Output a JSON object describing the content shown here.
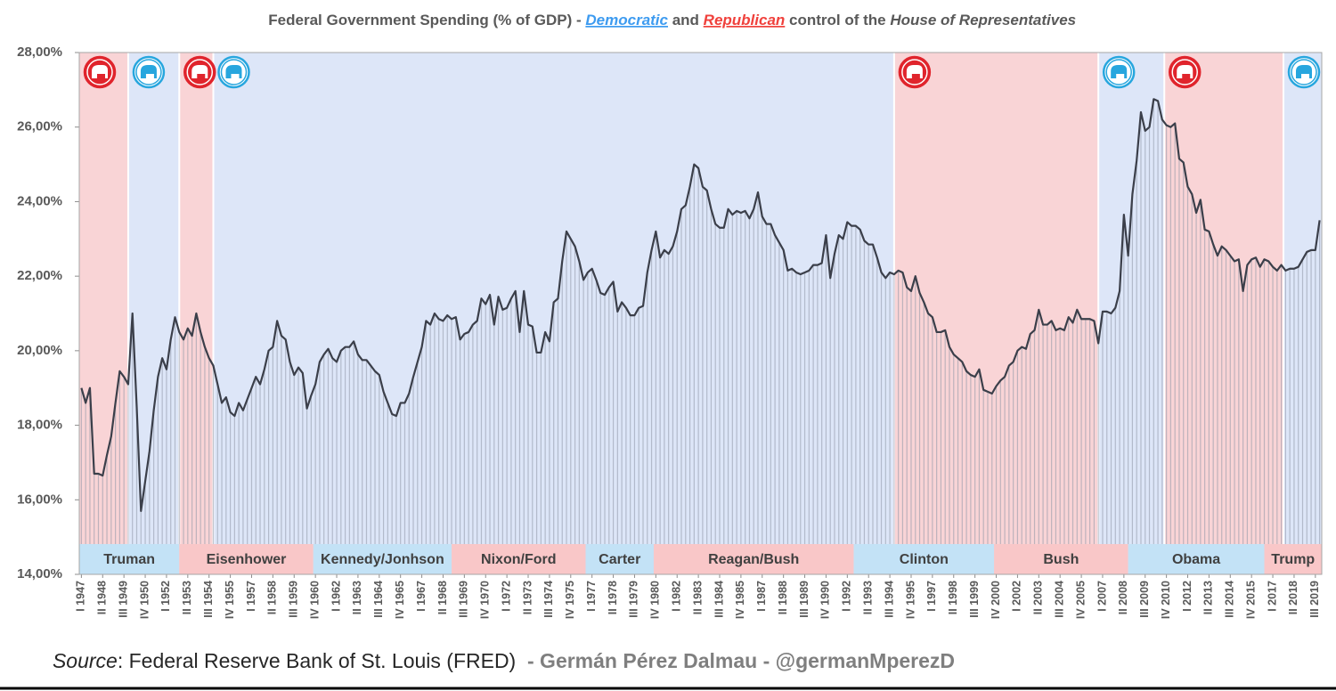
{
  "chart_data": {
    "type": "line",
    "title": [
      "Federal Government Spending (% of GDP) - ",
      "Democratic",
      " and ",
      "Republican",
      " control of the ",
      "House of Representatives"
    ],
    "source": [
      "Source",
      ": Federal Reserve Bank of St. Louis (FRED)",
      "  - Germán Pérez Dalmau - @germanMperezD"
    ],
    "line_color": "#3b3f4a",
    "fill_color": "#8e96a6",
    "xlim": [
      1946.875,
      2019.875
    ],
    "ylim": [
      14,
      28
    ],
    "yticks": [
      {
        "value": 28,
        "label": "28,00%"
      },
      {
        "value": 26,
        "label": "26,00%"
      },
      {
        "value": 24,
        "label": "24,00%"
      },
      {
        "value": 22,
        "label": "22,00%"
      },
      {
        "value": 20,
        "label": "20,00%"
      },
      {
        "value": 18,
        "label": "18,00%"
      },
      {
        "value": 16,
        "label": "16,00%"
      },
      {
        "value": 14,
        "label": "14,00%"
      }
    ],
    "xticks": [
      {
        "value": 1947,
        "label": "I 1947"
      },
      {
        "value": 1948.25,
        "label": "II 1948"
      },
      {
        "value": 1949.5,
        "label": "III 1949"
      },
      {
        "value": 1950.75,
        "label": "IV 1950"
      },
      {
        "value": 1952,
        "label": "I 1952"
      },
      {
        "value": 1953.25,
        "label": "II 1953"
      },
      {
        "value": 1954.5,
        "label": "III 1954"
      },
      {
        "value": 1955.75,
        "label": "IV 1955"
      },
      {
        "value": 1957,
        "label": "I 1957"
      },
      {
        "value": 1958.25,
        "label": "II 1958"
      },
      {
        "value": 1959.5,
        "label": "III 1959"
      },
      {
        "value": 1960.75,
        "label": "IV 1960"
      },
      {
        "value": 1962,
        "label": "I 1962"
      },
      {
        "value": 1963.25,
        "label": "II 1963"
      },
      {
        "value": 1964.5,
        "label": "III 1964"
      },
      {
        "value": 1965.75,
        "label": "IV 1965"
      },
      {
        "value": 1967,
        "label": "I 1967"
      },
      {
        "value": 1968.25,
        "label": "II 1968"
      },
      {
        "value": 1969.5,
        "label": "III 1969"
      },
      {
        "value": 1970.75,
        "label": "IV 1970"
      },
      {
        "value": 1972,
        "label": "I 1972"
      },
      {
        "value": 1973.25,
        "label": "II 1973"
      },
      {
        "value": 1974.5,
        "label": "III 1974"
      },
      {
        "value": 1975.75,
        "label": "IV 1975"
      },
      {
        "value": 1977,
        "label": "I 1977"
      },
      {
        "value": 1978.25,
        "label": "II 1978"
      },
      {
        "value": 1979.5,
        "label": "III 1979"
      },
      {
        "value": 1980.75,
        "label": "IV 1980"
      },
      {
        "value": 1982,
        "label": "I 1982"
      },
      {
        "value": 1983.25,
        "label": "II 1983"
      },
      {
        "value": 1984.5,
        "label": "III 1984"
      },
      {
        "value": 1985.75,
        "label": "IV 1985"
      },
      {
        "value": 1987,
        "label": "I 1987"
      },
      {
        "value": 1988.25,
        "label": "II 1988"
      },
      {
        "value": 1989.5,
        "label": "III 1989"
      },
      {
        "value": 1990.75,
        "label": "IV 1990"
      },
      {
        "value": 1992,
        "label": "I 1992"
      },
      {
        "value": 1993.25,
        "label": "II 1993"
      },
      {
        "value": 1994.5,
        "label": "III 1994"
      },
      {
        "value": 1995.75,
        "label": "IV 1995"
      },
      {
        "value": 1997,
        "label": "I 1997"
      },
      {
        "value": 1998.25,
        "label": "II 1998"
      },
      {
        "value": 1999.5,
        "label": "III 1999"
      },
      {
        "value": 2000.75,
        "label": "IV 2000"
      },
      {
        "value": 2002,
        "label": "I 2002"
      },
      {
        "value": 2003.25,
        "label": "II 2003"
      },
      {
        "value": 2004.5,
        "label": "III 2004"
      },
      {
        "value": 2005.75,
        "label": "IV 2005"
      },
      {
        "value": 2007,
        "label": "I 2007"
      },
      {
        "value": 2008.25,
        "label": "II 2008"
      },
      {
        "value": 2009.5,
        "label": "III 2009"
      },
      {
        "value": 2010.75,
        "label": "IV 2010"
      },
      {
        "value": 2012,
        "label": "I 2012"
      },
      {
        "value": 2013.25,
        "label": "II 2013"
      },
      {
        "value": 2014.5,
        "label": "III 2014"
      },
      {
        "value": 2015.75,
        "label": "IV 2015"
      },
      {
        "value": 2017,
        "label": "I 2017"
      },
      {
        "value": 2018.25,
        "label": "II 2018"
      },
      {
        "value": 2019.5,
        "label": "III 2019"
      }
    ],
    "control": [
      {
        "start": 1946.875,
        "end": 1949.75,
        "color": "#f9d4d6",
        "icon_fill": "#e0242c",
        "icon_stroke": "#ffffff"
      },
      {
        "start": 1949.75,
        "end": 1952.75,
        "color": "#dde6f8",
        "icon_fill": "#ffffff",
        "icon_stroke": "#27a6de"
      },
      {
        "start": 1952.75,
        "end": 1954.75,
        "color": "#f9d4d6",
        "icon_fill": "#e0242c",
        "icon_stroke": "#ffffff"
      },
      {
        "start": 1954.75,
        "end": 1994.75,
        "color": "#dde6f8",
        "icon_fill": "#ffffff",
        "icon_stroke": "#27a6de"
      },
      {
        "start": 1994.75,
        "end": 2006.75,
        "color": "#f9d4d6",
        "icon_fill": "#e0242c",
        "icon_stroke": "#ffffff"
      },
      {
        "start": 2006.75,
        "end": 2010.625,
        "color": "#dde6f8",
        "icon_fill": "#ffffff",
        "icon_stroke": "#27a6de"
      },
      {
        "start": 2010.625,
        "end": 2017.625,
        "color": "#f9d4d6",
        "icon_fill": "#e0242c",
        "icon_stroke": "#ffffff"
      },
      {
        "start": 2017.625,
        "end": 2019.875,
        "color": "#dde6f8",
        "icon_fill": "#ffffff",
        "icon_stroke": "#27a6de"
      }
    ],
    "presidents": [
      {
        "name": "Truman",
        "start": 1946.875,
        "end": 1952.75,
        "color": "#c3e2f6"
      },
      {
        "name": "Eisenhower",
        "start": 1952.75,
        "end": 1960.625,
        "color": "#f9c7c8"
      },
      {
        "name": "Kennedy/Jonhson",
        "start": 1960.625,
        "end": 1968.75,
        "color": "#c3e2f6"
      },
      {
        "name": "Nixon/Ford",
        "start": 1968.75,
        "end": 1976.625,
        "color": "#f9c7c8"
      },
      {
        "name": "Carter",
        "start": 1976.625,
        "end": 1980.625,
        "color": "#c3e2f6"
      },
      {
        "name": "Reagan/Bush",
        "start": 1980.625,
        "end": 1992.375,
        "color": "#f9c7c8"
      },
      {
        "name": "Clinton",
        "start": 1992.375,
        "end": 2000.625,
        "color": "#c3e2f6"
      },
      {
        "name": "Bush",
        "start": 2000.625,
        "end": 2008.5,
        "color": "#f9c7c8"
      },
      {
        "name": "Obama",
        "start": 2008.5,
        "end": 2016.5,
        "color": "#c3e2f6"
      },
      {
        "name": "Trump",
        "start": 2016.5,
        "end": 2019.875,
        "color": "#f9c7c8"
      }
    ],
    "x": [
      1947,
      1947.25,
      1947.5,
      1947.75,
      1948,
      1948.25,
      1948.5,
      1948.75,
      1949,
      1949.25,
      1949.5,
      1949.75,
      1950,
      1950.25,
      1950.5,
      1950.75,
      1951,
      1951.25,
      1951.5,
      1951.75,
      1952,
      1952.25,
      1952.5,
      1952.75,
      1953,
      1953.25,
      1953.5,
      1953.75,
      1954,
      1954.25,
      1954.5,
      1954.75,
      1955,
      1955.25,
      1955.5,
      1955.75,
      1956,
      1956.25,
      1956.5,
      1956.75,
      1957,
      1957.25,
      1957.5,
      1957.75,
      1958,
      1958.25,
      1958.5,
      1958.75,
      1959,
      1959.25,
      1959.5,
      1959.75,
      1960,
      1960.25,
      1960.5,
      1960.75,
      1961,
      1961.25,
      1961.5,
      1961.75,
      1962,
      1962.25,
      1962.5,
      1962.75,
      1963,
      1963.25,
      1963.5,
      1963.75,
      1964,
      1964.25,
      1964.5,
      1964.75,
      1965,
      1965.25,
      1965.5,
      1965.75,
      1966,
      1966.25,
      1966.5,
      1966.75,
      1967,
      1967.25,
      1967.5,
      1967.75,
      1968,
      1968.25,
      1968.5,
      1968.75,
      1969,
      1969.25,
      1969.5,
      1969.75,
      1970,
      1970.25,
      1970.5,
      1970.75,
      1971,
      1971.25,
      1971.5,
      1971.75,
      1972,
      1972.25,
      1972.5,
      1972.75,
      1973,
      1973.25,
      1973.5,
      1973.75,
      1974,
      1974.25,
      1974.5,
      1974.75,
      1975,
      1975.25,
      1975.5,
      1975.75,
      1976,
      1976.25,
      1976.5,
      1976.75,
      1977,
      1977.25,
      1977.5,
      1977.75,
      1978,
      1978.25,
      1978.5,
      1978.75,
      1979,
      1979.25,
      1979.5,
      1979.75,
      1980,
      1980.25,
      1980.5,
      1980.75,
      1981,
      1981.25,
      1981.5,
      1981.75,
      1982,
      1982.25,
      1982.5,
      1982.75,
      1983,
      1983.25,
      1983.5,
      1983.75,
      1984,
      1984.25,
      1984.5,
      1984.75,
      1985,
      1985.25,
      1985.5,
      1985.75,
      1986,
      1986.25,
      1986.5,
      1986.75,
      1987,
      1987.25,
      1987.5,
      1987.75,
      1988,
      1988.25,
      1988.5,
      1988.75,
      1989,
      1989.25,
      1989.5,
      1989.75,
      1990,
      1990.25,
      1990.5,
      1990.75,
      1991,
      1991.25,
      1991.5,
      1991.75,
      1992,
      1992.25,
      1992.5,
      1992.75,
      1993,
      1993.25,
      1993.5,
      1993.75,
      1994,
      1994.25,
      1994.5,
      1994.75,
      1995,
      1995.25,
      1995.5,
      1995.75,
      1996,
      1996.25,
      1996.5,
      1996.75,
      1997,
      1997.25,
      1997.5,
      1997.75,
      1998,
      1998.25,
      1998.5,
      1998.75,
      1999,
      1999.25,
      1999.5,
      1999.75,
      2000,
      2000.25,
      2000.5,
      2000.75,
      2001,
      2001.25,
      2001.5,
      2001.75,
      2002,
      2002.25,
      2002.5,
      2002.75,
      2003,
      2003.25,
      2003.5,
      2003.75,
      2004,
      2004.25,
      2004.5,
      2004.75,
      2005,
      2005.25,
      2005.5,
      2005.75,
      2006,
      2006.25,
      2006.5,
      2006.75,
      2007,
      2007.25,
      2007.5,
      2007.75,
      2008,
      2008.25,
      2008.5,
      2008.75,
      2009,
      2009.25,
      2009.5,
      2009.75,
      2010,
      2010.25,
      2010.5,
      2010.75,
      2011,
      2011.25,
      2011.5,
      2011.75,
      2012,
      2012.25,
      2012.5,
      2012.75,
      2013,
      2013.25,
      2013.5,
      2013.75,
      2014,
      2014.25,
      2014.5,
      2014.75,
      2015,
      2015.25,
      2015.5,
      2015.75,
      2016,
      2016.25,
      2016.5,
      2016.75,
      2017,
      2017.25,
      2017.5,
      2017.75,
      2018,
      2018.25,
      2018.5,
      2018.75,
      2019,
      2019.25,
      2019.5,
      2019.75
    ],
    "values": [
      19.0,
      18.6,
      19.0,
      16.7,
      16.7,
      16.65,
      17.2,
      17.7,
      18.6,
      19.45,
      19.3,
      19.1,
      21.0,
      18.5,
      15.7,
      16.5,
      17.3,
      18.4,
      19.3,
      19.8,
      19.5,
      20.3,
      20.9,
      20.5,
      20.3,
      20.6,
      20.4,
      21.0,
      20.5,
      20.1,
      19.8,
      19.6,
      19.1,
      18.6,
      18.75,
      18.35,
      18.25,
      18.6,
      18.4,
      18.7,
      19.0,
      19.3,
      19.1,
      19.5,
      20.0,
      20.1,
      20.8,
      20.4,
      20.3,
      19.7,
      19.35,
      19.55,
      19.4,
      18.45,
      18.8,
      19.1,
      19.7,
      19.9,
      20.05,
      19.8,
      19.7,
      20.0,
      20.1,
      20.1,
      20.25,
      19.9,
      19.75,
      19.75,
      19.6,
      19.45,
      19.35,
      18.9,
      18.6,
      18.3,
      18.25,
      18.6,
      18.6,
      18.85,
      19.3,
      19.7,
      20.1,
      20.8,
      20.7,
      21.0,
      20.85,
      20.8,
      20.95,
      20.85,
      20.9,
      20.3,
      20.45,
      20.5,
      20.7,
      20.8,
      21.4,
      21.25,
      21.5,
      20.7,
      21.45,
      21.1,
      21.15,
      21.4,
      21.6,
      20.5,
      21.6,
      20.7,
      20.65,
      19.95,
      19.95,
      20.5,
      20.25,
      21.3,
      21.4,
      22.4,
      23.2,
      23.0,
      22.8,
      22.4,
      21.9,
      22.1,
      22.2,
      21.9,
      21.55,
      21.5,
      21.7,
      21.85,
      21.05,
      21.3,
      21.15,
      20.95,
      20.95,
      21.15,
      21.2,
      22.1,
      22.7,
      23.2,
      22.5,
      22.7,
      22.6,
      22.8,
      23.2,
      23.8,
      23.9,
      24.4,
      25.0,
      24.9,
      24.4,
      24.3,
      23.8,
      23.4,
      23.3,
      23.3,
      23.8,
      23.65,
      23.75,
      23.7,
      23.75,
      23.55,
      23.8,
      24.25,
      23.6,
      23.4,
      23.4,
      23.1,
      22.9,
      22.7,
      22.15,
      22.2,
      22.1,
      22.05,
      22.1,
      22.15,
      22.3,
      22.3,
      22.35,
      23.1,
      21.95,
      22.6,
      23.1,
      23.0,
      23.45,
      23.35,
      23.35,
      23.25,
      22.95,
      22.85,
      22.85,
      22.5,
      22.1,
      21.95,
      22.1,
      22.05,
      22.15,
      22.1,
      21.7,
      21.6,
      22.0,
      21.55,
      21.3,
      21.0,
      20.9,
      20.5,
      20.5,
      20.55,
      20.1,
      19.9,
      19.8,
      19.7,
      19.45,
      19.35,
      19.3,
      19.5,
      18.95,
      18.9,
      18.85,
      19.05,
      19.2,
      19.3,
      19.6,
      19.7,
      20.0,
      20.1,
      20.05,
      20.45,
      20.55,
      21.1,
      20.7,
      20.7,
      20.8,
      20.55,
      20.6,
      20.55,
      20.9,
      20.75,
      21.1,
      20.85,
      20.85,
      20.85,
      20.8,
      20.2,
      21.05,
      21.05,
      21.0,
      21.15,
      21.6,
      23.65,
      22.55,
      24.2,
      25.1,
      26.4,
      25.9,
      26.0,
      26.75,
      26.7,
      26.2,
      26.05,
      26.0,
      26.1,
      25.15,
      25.05,
      24.4,
      24.2,
      23.7,
      24.05,
      23.25,
      23.2,
      22.85,
      22.55,
      22.8,
      22.7,
      22.55,
      22.4,
      22.45,
      21.6,
      22.3,
      22.45,
      22.5,
      22.25,
      22.45,
      22.4,
      22.25,
      22.15,
      22.3,
      22.15,
      22.2,
      22.2,
      22.25,
      22.45,
      22.65,
      22.7,
      22.7,
      23.5
    ]
  }
}
